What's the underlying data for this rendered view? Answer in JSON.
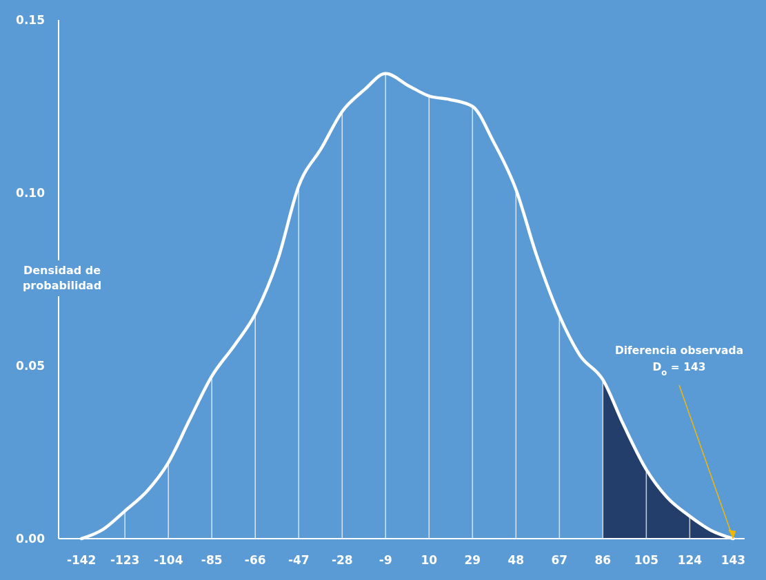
{
  "chart_data": {
    "type": "line",
    "ylabel": "Densidad de probabilidad",
    "xlim": [
      -152,
      148
    ],
    "ylim": [
      0,
      0.15
    ],
    "xticks": [
      -142,
      -123,
      -104,
      -85,
      -66,
      -47,
      -28,
      -9,
      10,
      29,
      48,
      67,
      86,
      105,
      124,
      143
    ],
    "yticks": [
      {
        "value": 0,
        "label": "0.00"
      },
      {
        "value": 0.05,
        "label": "0.05"
      },
      {
        "value": 0.1,
        "label": "0.10"
      },
      {
        "value": 0.15,
        "label": "0.15"
      }
    ],
    "series": [
      {
        "type": "area",
        "color": "#243e6b",
        "x": [
          86,
          95,
          105,
          114,
          124,
          133,
          143
        ],
        "values": [
          0.046,
          0.033,
          0.02,
          0.012,
          0.0065,
          0.0025,
          0
        ]
      },
      {
        "type": "bar",
        "color": "#ffffff",
        "x": [
          -123,
          -104,
          -85,
          -66,
          -47,
          -28,
          -9,
          10,
          29,
          48,
          67,
          86,
          105,
          124
        ],
        "values": [
          0.008,
          0.022,
          0.047,
          0.065,
          0.102,
          0.1235,
          0.1345,
          0.128,
          0.125,
          0.101,
          0.0645,
          0.046,
          0.02,
          0.0065
        ]
      },
      {
        "color": "#ffffff",
        "x": [
          -142,
          -133,
          -123,
          -113,
          -104,
          -95,
          -85,
          -75,
          -66,
          -56,
          -47,
          -37,
          -28,
          -18,
          -9,
          1,
          10,
          19,
          29,
          38,
          48,
          57,
          67,
          76,
          86,
          95,
          105,
          114,
          124,
          133,
          143
        ],
        "values": [
          0,
          0.0025,
          0.008,
          0.014,
          0.022,
          0.034,
          0.047,
          0.056,
          0.065,
          0.081,
          0.102,
          0.113,
          0.1235,
          0.13,
          0.1345,
          0.131,
          0.128,
          0.127,
          0.125,
          0.115,
          0.101,
          0.082,
          0.0645,
          0.053,
          0.046,
          0.033,
          0.02,
          0.012,
          0.0065,
          0.0025,
          0
        ]
      }
    ],
    "annotations": [
      {
        "text": "Diferencia observada\nD$_{o}$ = 143",
        "x": 143,
        "y": 0
      }
    ]
  }
}
